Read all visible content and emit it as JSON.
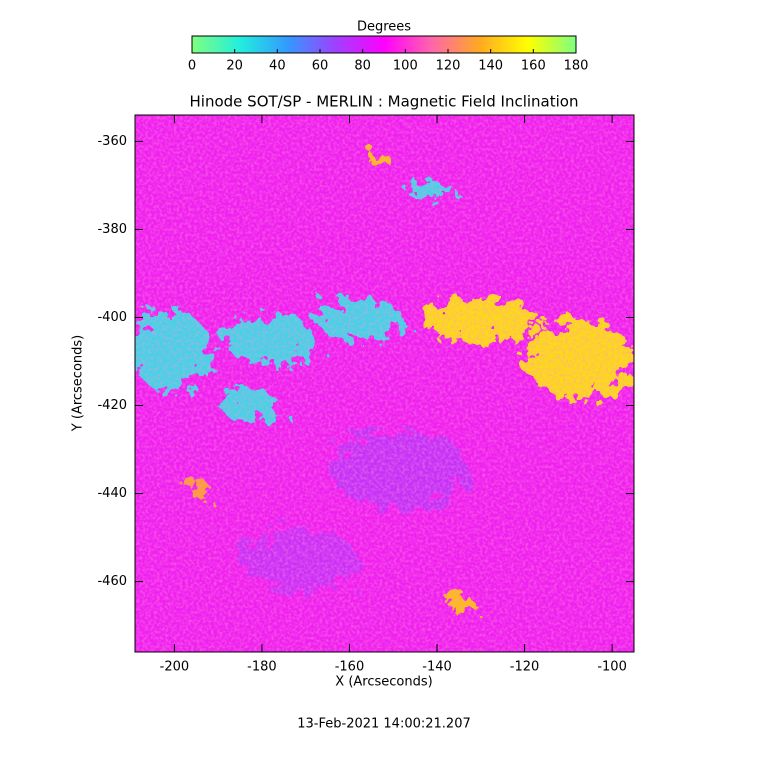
{
  "chart_data": {
    "type": "heatmap",
    "title": "Hinode SOT/SP - MERLIN : Magnetic Field Inclination",
    "xlabel": "X (Arcseconds)",
    "ylabel": "Y (Arcseconds)",
    "xlim": [
      -209,
      -95
    ],
    "ylim": [
      -476,
      -354
    ],
    "xticks": [
      -200,
      -180,
      -160,
      -140,
      -120,
      -100
    ],
    "yticks": [
      -460,
      -440,
      -420,
      -400,
      -380,
      -360
    ],
    "colorbar": {
      "title": "Degrees",
      "lim": [
        0,
        180
      ],
      "ticks": [
        0,
        20,
        40,
        60,
        80,
        100,
        120,
        140,
        160,
        180
      ],
      "colors": [
        "#7fff7f",
        "#22eedd",
        "#3399ff",
        "#a040ff",
        "#ff00ff",
        "#ff66aa",
        "#ffaa22",
        "#ffff00",
        "#7fff7f"
      ]
    },
    "footer": "13-Feb-2021 14:00:21.207"
  }
}
